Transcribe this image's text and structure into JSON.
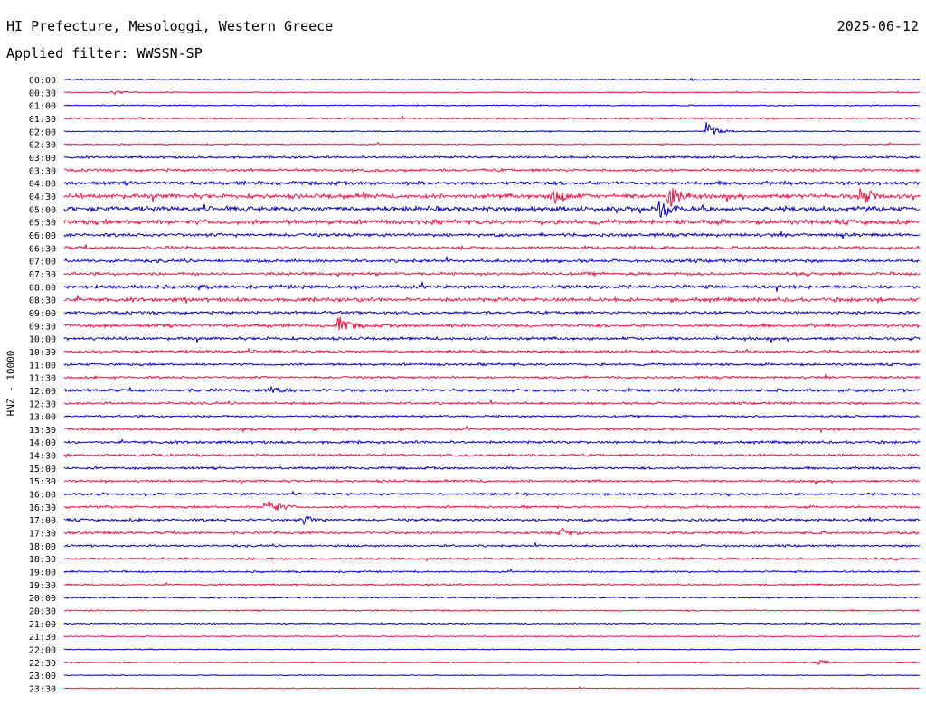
{
  "header": {
    "title": "HI Prefecture, Mesologgi, Western Greece",
    "date": "2025-06-12",
    "filter": "Applied filter: WWSSN-SP"
  },
  "chart_data": {
    "type": "line",
    "title": "HI Prefecture, Mesologgi, Western Greece",
    "ylabel": "HNZ - 10000",
    "row_labels": [
      "00:00",
      "00:30",
      "01:00",
      "01:30",
      "02:00",
      "02:30",
      "03:00",
      "03:30",
      "04:00",
      "04:30",
      "05:00",
      "05:30",
      "06:00",
      "06:30",
      "07:00",
      "07:30",
      "08:00",
      "08:30",
      "09:00",
      "09:30",
      "10:00",
      "10:30",
      "11:00",
      "11:30",
      "12:00",
      "12:30",
      "13:00",
      "13:30",
      "14:00",
      "14:30",
      "15:00",
      "15:30",
      "16:00",
      "16:30",
      "17:00",
      "17:30",
      "18:00",
      "18:30",
      "19:00",
      "19:30",
      "20:00",
      "20:30",
      "21:00",
      "21:30",
      "22:00",
      "22:30",
      "23:00",
      "23:30"
    ],
    "colors": [
      "#0000cc",
      "#ee1144"
    ],
    "relative_noise": [
      0.3,
      0.35,
      0.4,
      0.6,
      0.4,
      0.5,
      0.7,
      0.9,
      1.2,
      1.5,
      1.6,
      1.6,
      1.1,
      1.1,
      1.0,
      1.0,
      1.2,
      1.3,
      0.9,
      1.1,
      1.0,
      0.9,
      0.8,
      0.8,
      1.0,
      0.8,
      0.7,
      0.8,
      0.9,
      0.8,
      0.8,
      0.8,
      0.8,
      0.8,
      0.9,
      0.9,
      0.7,
      0.8,
      0.6,
      0.6,
      0.5,
      0.5,
      0.45,
      0.35,
      0.35,
      0.3,
      0.3,
      0.35
    ],
    "events": [
      {
        "row": 0,
        "t": 0.73,
        "amp": 2
      },
      {
        "row": 1,
        "t": 0.055,
        "amp": 3
      },
      {
        "row": 4,
        "t": 0.75,
        "amp": 10
      },
      {
        "row": 9,
        "t": 0.57,
        "amp": 12
      },
      {
        "row": 9,
        "t": 0.705,
        "amp": 16
      },
      {
        "row": 9,
        "t": 0.93,
        "amp": 10
      },
      {
        "row": 10,
        "t": 0.695,
        "amp": 12
      },
      {
        "row": 19,
        "t": 0.32,
        "amp": 10
      },
      {
        "row": 24,
        "t": 0.24,
        "amp": 4
      },
      {
        "row": 33,
        "t": 0.235,
        "amp": 12
      },
      {
        "row": 34,
        "t": 0.28,
        "amp": 4
      },
      {
        "row": 35,
        "t": 0.58,
        "amp": 5
      },
      {
        "row": 45,
        "t": 0.88,
        "amp": 3
      }
    ]
  }
}
